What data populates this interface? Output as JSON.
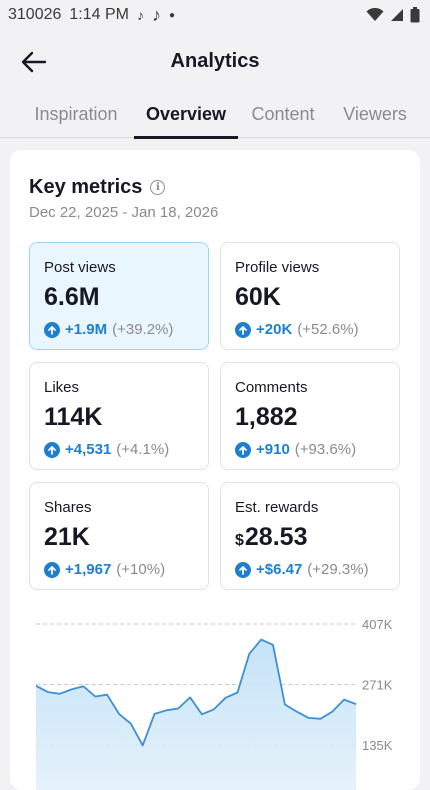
{
  "status": {
    "carrier": "310026",
    "time": "1:14 PM"
  },
  "header": {
    "title": "Analytics"
  },
  "tabs": [
    {
      "label": "Inspiration"
    },
    {
      "label": "Overview"
    },
    {
      "label": "Content"
    },
    {
      "label": "Viewers"
    }
  ],
  "active_tab": "Overview",
  "key_metrics": {
    "title": "Key metrics",
    "date_range": "Dec 22, 2025 - Jan 18, 2026",
    "metrics": [
      {
        "label": "Post views",
        "value": "6.6M",
        "delta": "+1.9M",
        "pct": "(+39.2%)",
        "selected": true
      },
      {
        "label": "Profile views",
        "value": "60K",
        "delta": "+20K",
        "pct": "(+52.6%)"
      },
      {
        "label": "Likes",
        "value": "114K",
        "delta": "+4,531",
        "pct": "(+4.1%)"
      },
      {
        "label": "Comments",
        "value": "1,882",
        "delta": "+910",
        "pct": "(+93.6%)"
      },
      {
        "label": "Shares",
        "value": "21K",
        "delta": "+1,967",
        "pct": "(+10%)"
      },
      {
        "label": "Est. rewards",
        "currency": "$",
        "value": "28.53",
        "delta": "+$6.47",
        "pct": "(+29.3%)"
      }
    ]
  },
  "colors": {
    "accent": "#1d7fd1",
    "selected_bg": "#eaf6fd",
    "selected_border": "#9fd6f4",
    "chart_line": "#3d8fd6"
  },
  "chart_data": {
    "type": "area",
    "ytick_labels": [
      "407K",
      "271K",
      "135K"
    ],
    "y_ticks": [
      407000,
      271000,
      135000
    ],
    "ylim": [
      100000,
      430000
    ],
    "grid": true,
    "values": [
      268000,
      254000,
      250000,
      260000,
      267000,
      244000,
      248000,
      205000,
      183000,
      134000,
      205000,
      213000,
      217000,
      242000,
      204000,
      215000,
      241000,
      253000,
      340000,
      372000,
      360000,
      226000,
      210000,
      196000,
      194000,
      210000,
      237000,
      227000
    ]
  }
}
